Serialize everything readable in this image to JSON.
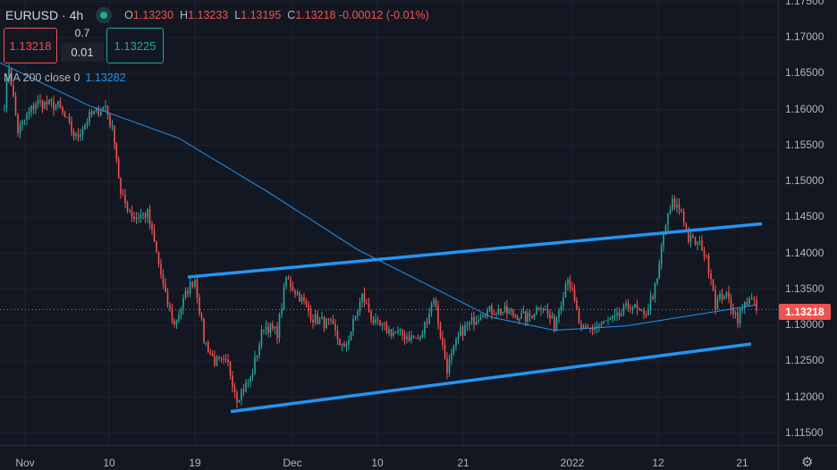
{
  "header": {
    "symbol": "EURUSD",
    "interval": "4h",
    "separator": "·",
    "o_label": "O",
    "o": "1.13230",
    "h_label": "H",
    "h": "1.13233",
    "l_label": "L",
    "l": "1.13195",
    "c_label": "C",
    "c": "1.13218",
    "change": "-0.00012 (-0.01%)"
  },
  "trade": {
    "sell": "1.13218",
    "buy": "1.13225",
    "spread_top": "0.7",
    "spread_bottom": "0.01"
  },
  "indicator": {
    "name": "MA 200 close 0",
    "value": "1.13282"
  },
  "last_price": "1.13218",
  "colors": {
    "up": "#26a69a",
    "down": "#ef5350",
    "ma": "#2196f3",
    "trendline": "#2196f3",
    "grid": "#1e2330"
  },
  "chart_data": {
    "type": "candlestick",
    "title": "EURUSD · 4h",
    "ylim": [
      1.1145,
      1.1755
    ],
    "yticks": [
      "1.17500",
      "1.17000",
      "1.16500",
      "1.16000",
      "1.15500",
      "1.15000",
      "1.14500",
      "1.14000",
      "1.13500",
      "1.13000",
      "1.12500",
      "1.12000",
      "1.11500"
    ],
    "xticks": [
      {
        "label": "Nov",
        "t": 0
      },
      {
        "label": "10",
        "t": 9.4
      },
      {
        "label": "19",
        "t": 19
      },
      {
        "label": "Dec",
        "t": 29.9
      },
      {
        "label": "10",
        "t": 39.4
      },
      {
        "label": "21",
        "t": 49
      },
      {
        "label": "2022",
        "t": 61.2
      },
      {
        "label": "12",
        "t": 70.8
      },
      {
        "label": "21",
        "t": 80.2
      }
    ],
    "price_path": [
      [
        -2.3,
        1.161
      ],
      [
        -1.8,
        1.166
      ],
      [
        -0.8,
        1.157
      ],
      [
        1.2,
        1.161
      ],
      [
        3.7,
        1.1605
      ],
      [
        5.7,
        1.156
      ],
      [
        7.2,
        1.159
      ],
      [
        9,
        1.1605
      ],
      [
        10,
        1.156
      ],
      [
        10.7,
        1.148
      ],
      [
        12.2,
        1.145
      ],
      [
        13.7,
        1.1455
      ],
      [
        14.7,
        1.14
      ],
      [
        15.7,
        1.134
      ],
      [
        16.7,
        1.13
      ],
      [
        18.2,
        1.135
      ],
      [
        19,
        1.1365
      ],
      [
        20,
        1.128
      ],
      [
        21.2,
        1.125
      ],
      [
        22.7,
        1.1245
      ],
      [
        23.7,
        1.12
      ],
      [
        25.2,
        1.1225
      ],
      [
        26.7,
        1.13
      ],
      [
        28.2,
        1.129
      ],
      [
        29.2,
        1.1365
      ],
      [
        30.7,
        1.134
      ],
      [
        32.2,
        1.131
      ],
      [
        34.2,
        1.13
      ],
      [
        35.7,
        1.1265
      ],
      [
        37.7,
        1.134
      ],
      [
        39.2,
        1.13
      ],
      [
        41.2,
        1.129
      ],
      [
        42.7,
        1.1285
      ],
      [
        44.2,
        1.128
      ],
      [
        45.7,
        1.134
      ],
      [
        46.7,
        1.127
      ],
      [
        47.2,
        1.124
      ],
      [
        48.7,
        1.129
      ],
      [
        51.2,
        1.132
      ],
      [
        53.2,
        1.132
      ],
      [
        56.2,
        1.131
      ],
      [
        57.7,
        1.133
      ],
      [
        59.2,
        1.13
      ],
      [
        60.7,
        1.137
      ],
      [
        62.2,
        1.129
      ],
      [
        64.2,
        1.13
      ],
      [
        66.2,
        1.131
      ],
      [
        67.7,
        1.133
      ],
      [
        69.2,
        1.131
      ],
      [
        70.7,
        1.136
      ],
      [
        71.4,
        1.143
      ],
      [
        72.4,
        1.147
      ],
      [
        73.4,
        1.146
      ],
      [
        74.2,
        1.142
      ],
      [
        75.7,
        1.141
      ],
      [
        76.7,
        1.137
      ],
      [
        77.2,
        1.133
      ],
      [
        78.2,
        1.1345
      ],
      [
        79.7,
        1.131
      ],
      [
        81,
        1.134
      ],
      [
        81.8,
        1.13218
      ]
    ],
    "series": [
      {
        "name": "MA 200 close 0",
        "points": [
          [
            -2.8,
            1.1665
          ],
          [
            7.2,
            1.1605
          ],
          [
            17.2,
            1.156
          ],
          [
            27.2,
            1.1485
          ],
          [
            37.2,
            1.1405
          ],
          [
            45.2,
            1.1355
          ],
          [
            52.2,
            1.1311
          ],
          [
            59.2,
            1.1293
          ],
          [
            67.2,
            1.1299
          ],
          [
            73.2,
            1.1311
          ],
          [
            81.8,
            1.13282
          ]
        ]
      }
    ],
    "trendlines": [
      {
        "name": "upper channel",
        "from": [
          18.2,
          1.1367
        ],
        "to": [
          82.4,
          1.1441
        ]
      },
      {
        "name": "lower channel",
        "from": [
          23,
          1.118
        ],
        "to": [
          81.2,
          1.1274
        ]
      }
    ]
  }
}
